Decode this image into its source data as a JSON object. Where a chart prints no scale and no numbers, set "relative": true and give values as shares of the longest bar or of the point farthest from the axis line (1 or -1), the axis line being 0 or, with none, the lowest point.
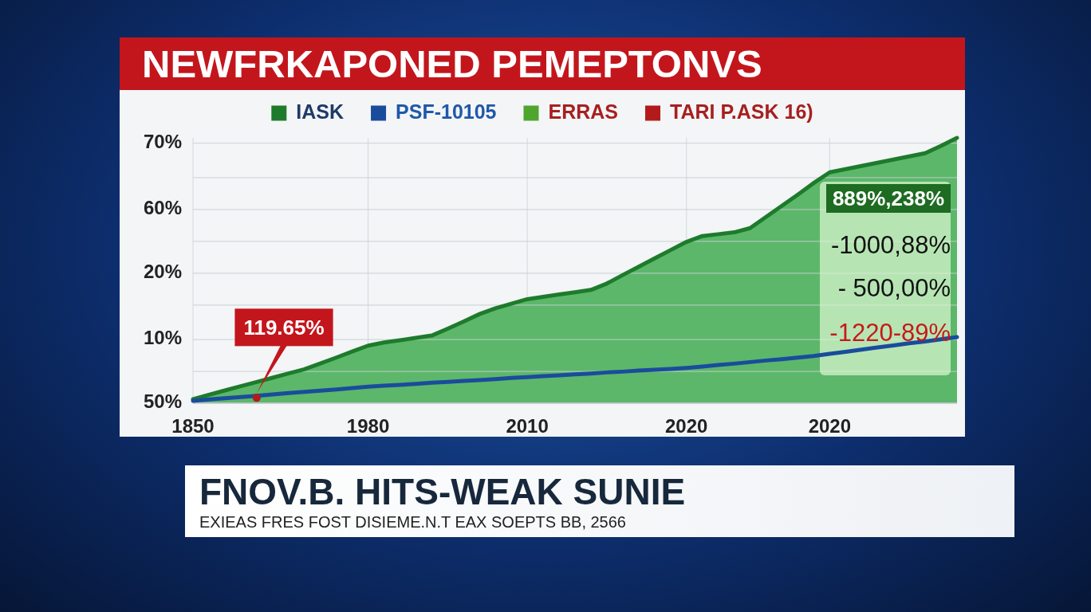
{
  "chart_data": {
    "type": "line",
    "title": "NEWFRKAPONED PEMEPTONVS",
    "relative": true,
    "categories": [
      "1850",
      null,
      null,
      null,
      null,
      null,
      null,
      null,
      null,
      null,
      null,
      "1980",
      null,
      null,
      null,
      null,
      null,
      null,
      null,
      null,
      null,
      "2010",
      null,
      null,
      null,
      null,
      null,
      null,
      null,
      null,
      null,
      "2020",
      null,
      null,
      null,
      null,
      null,
      null,
      null,
      null,
      "2020",
      null,
      null,
      null,
      null,
      null,
      null,
      null,
      null
    ],
    "grid": "x",
    "legend": "top",
    "ref_lines": [
      {
        "axis": "y",
        "value": 0
      },
      {
        "axis": "y",
        "value": 0.12
      },
      {
        "axis": "y",
        "value": 0.24
      },
      {
        "axis": "y",
        "value": 0.37
      },
      {
        "axis": "y",
        "value": 0.49
      },
      {
        "axis": "y",
        "value": 0.61
      },
      {
        "axis": "y",
        "value": 0.73
      },
      {
        "axis": "y",
        "value": 0.85
      },
      {
        "axis": "y",
        "value": 0.98
      }
    ],
    "series": [
      {
        "name": "IASK",
        "type": "area",
        "color": "#1e7b2c",
        "values": [
          0.015,
          0.032,
          0.048,
          0.064,
          0.08,
          0.096,
          0.112,
          0.128,
          0.15,
          0.172,
          0.195,
          0.217,
          0.229,
          0.237,
          0.246,
          0.255,
          0.281,
          0.308,
          0.336,
          0.358,
          0.375,
          0.392,
          0.401,
          0.41,
          0.418,
          0.427,
          0.451,
          0.483,
          0.514,
          0.546,
          0.577,
          0.608,
          0.63,
          0.637,
          0.644,
          0.66,
          0.702,
          0.744,
          0.786,
          0.83,
          0.87,
          0.882,
          0.894,
          0.906,
          0.918,
          0.93,
          0.942,
          0.97,
          1
        ]
      },
      {
        "name": "PSF-10105",
        "color": "#1a4c9c",
        "values": [
          0.009,
          0.014,
          0.019,
          0.023,
          0.028,
          0.033,
          0.038,
          0.043,
          0.047,
          0.052,
          0.057,
          0.062,
          0.066,
          0.069,
          0.073,
          0.077,
          0.08,
          0.084,
          0.087,
          0.091,
          0.095,
          0.098,
          0.102,
          0.105,
          0.109,
          0.112,
          0.116,
          0.119,
          0.123,
          0.126,
          0.129,
          0.133,
          0.138,
          0.144,
          0.149,
          0.155,
          0.161,
          0.166,
          0.172,
          0.178,
          0.186,
          0.194,
          0.202,
          0.21,
          0.218,
          0.226,
          0.233,
          0.241,
          0.249
        ]
      },
      {
        "name": "ERRAS",
        "color": "#4fa52d",
        "values": [
          null,
          null,
          null,
          null,
          null,
          null,
          null,
          null,
          null,
          null,
          null,
          null,
          null,
          null,
          null,
          null,
          null,
          null,
          null,
          null,
          null,
          null,
          null,
          null,
          null,
          null,
          null,
          null,
          null,
          null,
          null,
          null,
          null,
          null,
          null,
          null,
          null,
          null,
          null,
          null,
          null,
          null,
          null,
          null,
          null,
          null,
          null,
          null,
          null
        ]
      },
      {
        "name": "TARI P.ASK 16)",
        "type": "scatter",
        "color": "#b31b1b",
        "values": [
          null,
          null,
          null,
          null,
          0.02,
          null,
          null,
          null,
          null,
          null,
          null,
          null,
          null,
          null,
          null,
          null,
          null,
          null,
          null,
          null,
          null,
          null,
          null,
          null,
          null,
          null,
          null,
          null,
          null,
          null,
          null,
          null,
          null,
          null,
          null,
          null,
          null,
          null,
          null,
          null,
          null,
          null,
          null,
          null,
          null,
          null,
          null,
          null,
          null
        ]
      }
    ],
    "annotations": [
      "70%",
      "60%",
      "20%",
      "10%",
      "50%",
      {
        "text": "119.65%",
        "y": 0.02
      },
      "889%,238%",
      "-1000,88%",
      "- 500,00%",
      "-1220-89%",
      "FNOV.B. HITS-WEAK SUNIE",
      "EXIEAS FRES FOST DISIEME.N.T EAX SOEPTS BB, 2566"
    ]
  }
}
